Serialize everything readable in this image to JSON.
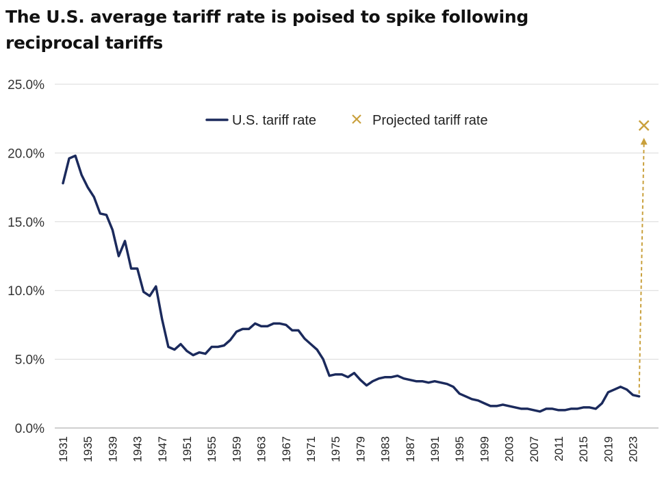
{
  "chart_data": {
    "type": "line",
    "title_lines": [
      "The U.S. average tariff rate is poised to spike following",
      "reciprocal tariffs"
    ],
    "xlabel": "",
    "ylabel": "",
    "ylim": [
      0,
      25
    ],
    "y_ticks": [
      "0.0%",
      "5.0%",
      "10.0%",
      "15.0%",
      "20.0%",
      "25.0%"
    ],
    "y_tick_values": [
      0,
      5,
      10,
      15,
      20,
      25
    ],
    "x_tick_labels": [
      "1931",
      "1935",
      "1939",
      "1943",
      "1947",
      "1951",
      "1955",
      "1959",
      "1963",
      "1967",
      "1971",
      "1975",
      "1979",
      "1983",
      "1987",
      "1991",
      "1995",
      "1999",
      "2003",
      "2007",
      "2011",
      "2015",
      "2019",
      "2023"
    ],
    "grid": true,
    "legend_position": "top-right",
    "legend": [
      {
        "label": "U.S. tariff rate",
        "marker": "line"
      },
      {
        "label": "Projected tariff rate",
        "marker": "x"
      }
    ],
    "colors": {
      "series": "#1b2a5c",
      "projected": "#c9a03c",
      "grid": "#d9d9d9",
      "axis": "#bfbfbf"
    },
    "series": [
      {
        "name": "U.S. tariff rate",
        "x": [
          1931,
          1932,
          1933,
          1934,
          1935,
          1936,
          1937,
          1938,
          1939,
          1940,
          1941,
          1942,
          1943,
          1944,
          1945,
          1946,
          1947,
          1948,
          1949,
          1950,
          1951,
          1952,
          1953,
          1954,
          1955,
          1956,
          1957,
          1958,
          1959,
          1960,
          1961,
          1962,
          1963,
          1964,
          1965,
          1966,
          1967,
          1968,
          1969,
          1970,
          1971,
          1972,
          1973,
          1974,
          1975,
          1976,
          1977,
          1978,
          1979,
          1980,
          1981,
          1982,
          1983,
          1984,
          1985,
          1986,
          1987,
          1988,
          1989,
          1990,
          1991,
          1992,
          1993,
          1994,
          1995,
          1996,
          1997,
          1998,
          1999,
          2000,
          2001,
          2002,
          2003,
          2004,
          2005,
          2006,
          2007,
          2008,
          2009,
          2010,
          2011,
          2012,
          2013,
          2014,
          2015,
          2016,
          2017,
          2018,
          2019,
          2020,
          2021,
          2022,
          2023,
          2024
        ],
        "values": [
          17.8,
          19.6,
          19.8,
          18.4,
          17.5,
          16.8,
          15.6,
          15.5,
          14.4,
          12.5,
          13.6,
          11.6,
          11.6,
          9.9,
          9.6,
          10.3,
          7.9,
          5.9,
          5.7,
          6.1,
          5.6,
          5.3,
          5.5,
          5.4,
          5.9,
          5.9,
          6.0,
          6.4,
          7.0,
          7.2,
          7.2,
          7.6,
          7.4,
          7.4,
          7.6,
          7.6,
          7.5,
          7.1,
          7.1,
          6.5,
          6.1,
          5.7,
          5.0,
          3.8,
          3.9,
          3.9,
          3.7,
          4.0,
          3.5,
          3.1,
          3.4,
          3.6,
          3.7,
          3.7,
          3.8,
          3.6,
          3.5,
          3.4,
          3.4,
          3.3,
          3.4,
          3.3,
          3.2,
          3.0,
          2.5,
          2.3,
          2.1,
          2.0,
          1.8,
          1.6,
          1.6,
          1.7,
          1.6,
          1.5,
          1.4,
          1.4,
          1.3,
          1.2,
          1.4,
          1.4,
          1.3,
          1.3,
          1.4,
          1.4,
          1.5,
          1.5,
          1.4,
          1.8,
          2.6,
          2.8,
          3.0,
          2.8,
          2.4,
          2.3
        ]
      },
      {
        "name": "Projected tariff rate",
        "x": [
          2025
        ],
        "values": [
          22.0
        ]
      }
    ]
  }
}
